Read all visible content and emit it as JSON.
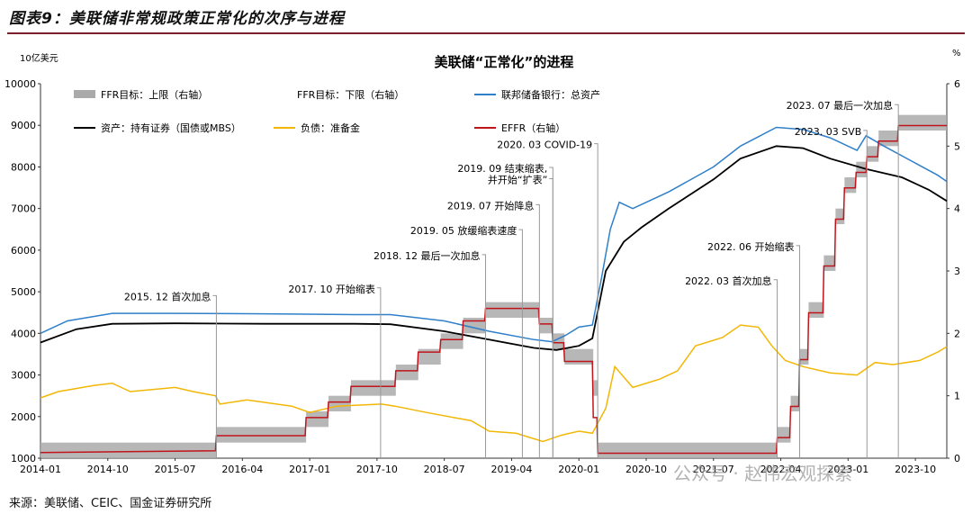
{
  "header_title": "图表9：美联储非常规政策正常化的次序与进程",
  "source": "来源：美联储、CEIC、国金证券研究所",
  "watermark": "公众号 · 赵伟宏观探索",
  "chart_data": {
    "type": "line",
    "title": "美联储“正常化”的进程",
    "left_unit": "10亿美元",
    "right_unit": "%",
    "left_axis": {
      "min": 1000,
      "max": 10000,
      "ticks": [
        "1000",
        "2000",
        "3000",
        "4000",
        "5000",
        "6000",
        "7000",
        "8000",
        "9000",
        "10000"
      ]
    },
    "right_axis": {
      "min": 0,
      "max": 6,
      "ticks": [
        "0",
        "1",
        "2",
        "3",
        "4",
        "5",
        "6"
      ]
    },
    "x_ticks": [
      "2014-01",
      "2014-10",
      "2015-07",
      "2016-04",
      "2017-01",
      "2017-10",
      "2018-07",
      "2019-04",
      "2020-01",
      "2020-10",
      "2021-07",
      "2022-04",
      "2023-01",
      "2023-10"
    ],
    "colors": {
      "upper": "#aaaaaa",
      "total": "#2f7fc9",
      "mbs": "#000000",
      "reserves": "#f2b705",
      "effr": "#c0141c"
    },
    "legend": [
      {
        "key": "upper",
        "label": "FFR目标：上限（右轴）"
      },
      {
        "key": "lower",
        "label": "FFR目标：下限（右轴）"
      },
      {
        "key": "total",
        "label": "联邦储备银行：总资产"
      },
      {
        "key": "mbs",
        "label": "资产：持有证券（国债或MBS）"
      },
      {
        "key": "reserves",
        "label": "负债：准备金"
      },
      {
        "key": "effr",
        "label": "EFFR（右轴）"
      }
    ],
    "series": [
      {
        "key": "total",
        "name": "联邦储备银行：总资产",
        "axis": "left",
        "points": [
          [
            2014.0,
            4000
          ],
          [
            2014.3,
            4300
          ],
          [
            2014.8,
            4480
          ],
          [
            2015.5,
            4480
          ],
          [
            2016.5,
            4470
          ],
          [
            2017.5,
            4450
          ],
          [
            2017.9,
            4450
          ],
          [
            2018.5,
            4300
          ],
          [
            2019.0,
            4050
          ],
          [
            2019.5,
            3850
          ],
          [
            2019.7,
            3800
          ],
          [
            2019.85,
            3950
          ],
          [
            2020.0,
            4150
          ],
          [
            2020.15,
            4200
          ],
          [
            2020.25,
            5300
          ],
          [
            2020.35,
            6500
          ],
          [
            2020.45,
            7150
          ],
          [
            2020.6,
            7000
          ],
          [
            2021.0,
            7400
          ],
          [
            2021.5,
            8000
          ],
          [
            2021.8,
            8500
          ],
          [
            2022.2,
            8950
          ],
          [
            2022.5,
            8900
          ],
          [
            2022.8,
            8700
          ],
          [
            2023.1,
            8400
          ],
          [
            2023.2,
            8750
          ],
          [
            2023.4,
            8500
          ],
          [
            2023.7,
            8150
          ],
          [
            2024.0,
            7800
          ],
          [
            2024.1,
            7650
          ]
        ]
      },
      {
        "key": "mbs",
        "name": "资产：持有证券（国债或MBS）",
        "axis": "left",
        "points": [
          [
            2014.0,
            3780
          ],
          [
            2014.4,
            4100
          ],
          [
            2014.8,
            4230
          ],
          [
            2015.5,
            4240
          ],
          [
            2016.5,
            4230
          ],
          [
            2017.5,
            4230
          ],
          [
            2017.9,
            4220
          ],
          [
            2018.5,
            4050
          ],
          [
            2019.0,
            3850
          ],
          [
            2019.5,
            3650
          ],
          [
            2019.75,
            3600
          ],
          [
            2020.0,
            3700
          ],
          [
            2020.15,
            3880
          ],
          [
            2020.3,
            5500
          ],
          [
            2020.5,
            6200
          ],
          [
            2020.7,
            6550
          ],
          [
            2021.0,
            7000
          ],
          [
            2021.5,
            7700
          ],
          [
            2021.8,
            8200
          ],
          [
            2022.2,
            8500
          ],
          [
            2022.5,
            8450
          ],
          [
            2022.8,
            8200
          ],
          [
            2023.2,
            7950
          ],
          [
            2023.6,
            7750
          ],
          [
            2023.9,
            7450
          ],
          [
            2024.1,
            7180
          ]
        ]
      },
      {
        "key": "reserves",
        "name": "负债：准备金",
        "axis": "left",
        "points": [
          [
            2014.0,
            2450
          ],
          [
            2014.2,
            2600
          ],
          [
            2014.6,
            2750
          ],
          [
            2014.8,
            2800
          ],
          [
            2015.0,
            2600
          ],
          [
            2015.5,
            2700
          ],
          [
            2015.7,
            2600
          ],
          [
            2015.95,
            2500
          ],
          [
            2016.0,
            2300
          ],
          [
            2016.3,
            2400
          ],
          [
            2016.8,
            2250
          ],
          [
            2017.0,
            2100
          ],
          [
            2017.3,
            2250
          ],
          [
            2017.8,
            2300
          ],
          [
            2017.95,
            2250
          ],
          [
            2018.3,
            2100
          ],
          [
            2018.8,
            1900
          ],
          [
            2019.0,
            1650
          ],
          [
            2019.3,
            1600
          ],
          [
            2019.6,
            1400
          ],
          [
            2019.8,
            1550
          ],
          [
            2020.0,
            1650
          ],
          [
            2020.15,
            1600
          ],
          [
            2020.3,
            2200
          ],
          [
            2020.4,
            3200
          ],
          [
            2020.6,
            2700
          ],
          [
            2020.9,
            2900
          ],
          [
            2021.1,
            3100
          ],
          [
            2021.3,
            3700
          ],
          [
            2021.6,
            3900
          ],
          [
            2021.8,
            4200
          ],
          [
            2022.0,
            4150
          ],
          [
            2022.15,
            3700
          ],
          [
            2022.3,
            3350
          ],
          [
            2022.5,
            3200
          ],
          [
            2022.8,
            3050
          ],
          [
            2023.1,
            3000
          ],
          [
            2023.3,
            3300
          ],
          [
            2023.5,
            3250
          ],
          [
            2023.8,
            3350
          ],
          [
            2024.0,
            3550
          ],
          [
            2024.1,
            3680
          ]
        ]
      },
      {
        "key": "effr",
        "name": "EFFR（右轴）",
        "axis": "right",
        "points": [
          [
            2014.0,
            0.09
          ],
          [
            2015.95,
            0.12
          ],
          [
            2015.96,
            0.36
          ],
          [
            2016.95,
            0.36
          ],
          [
            2016.96,
            0.65
          ],
          [
            2017.2,
            0.65
          ],
          [
            2017.21,
            0.9
          ],
          [
            2017.45,
            0.9
          ],
          [
            2017.46,
            1.15
          ],
          [
            2017.95,
            1.15
          ],
          [
            2017.96,
            1.4
          ],
          [
            2018.2,
            1.4
          ],
          [
            2018.21,
            1.7
          ],
          [
            2018.45,
            1.7
          ],
          [
            2018.46,
            1.9
          ],
          [
            2018.7,
            1.9
          ],
          [
            2018.71,
            2.2
          ],
          [
            2018.95,
            2.2
          ],
          [
            2018.96,
            2.4
          ],
          [
            2019.55,
            2.4
          ],
          [
            2019.56,
            2.15
          ],
          [
            2019.7,
            2.15
          ],
          [
            2019.71,
            1.85
          ],
          [
            2019.83,
            1.85
          ],
          [
            2019.84,
            1.55
          ],
          [
            2020.15,
            1.55
          ],
          [
            2020.16,
            0.65
          ],
          [
            2020.2,
            0.65
          ],
          [
            2020.21,
            0.08
          ],
          [
            2022.2,
            0.08
          ],
          [
            2022.21,
            0.33
          ],
          [
            2022.35,
            0.33
          ],
          [
            2022.36,
            0.83
          ],
          [
            2022.45,
            0.83
          ],
          [
            2022.46,
            1.58
          ],
          [
            2022.55,
            1.58
          ],
          [
            2022.56,
            2.33
          ],
          [
            2022.72,
            2.33
          ],
          [
            2022.73,
            3.08
          ],
          [
            2022.85,
            3.08
          ],
          [
            2022.86,
            3.83
          ],
          [
            2022.95,
            3.83
          ],
          [
            2022.96,
            4.33
          ],
          [
            2023.08,
            4.33
          ],
          [
            2023.09,
            4.58
          ],
          [
            2023.2,
            4.58
          ],
          [
            2023.21,
            4.83
          ],
          [
            2023.33,
            4.83
          ],
          [
            2023.34,
            5.08
          ],
          [
            2023.55,
            5.08
          ],
          [
            2023.56,
            5.33
          ],
          [
            2024.1,
            5.33
          ]
        ]
      }
    ],
    "upper_limit": [
      [
        2014.0,
        2015.96,
        0.25
      ],
      [
        2015.96,
        2016.96,
        0.5
      ],
      [
        2016.96,
        2017.21,
        0.75
      ],
      [
        2017.21,
        2017.46,
        1.0
      ],
      [
        2017.46,
        2017.96,
        1.25
      ],
      [
        2017.96,
        2018.21,
        1.5
      ],
      [
        2018.21,
        2018.46,
        1.75
      ],
      [
        2018.46,
        2018.71,
        2.0
      ],
      [
        2018.71,
        2018.96,
        2.25
      ],
      [
        2018.96,
        2019.56,
        2.5
      ],
      [
        2019.56,
        2019.71,
        2.25
      ],
      [
        2019.71,
        2019.84,
        2.0
      ],
      [
        2019.84,
        2020.16,
        1.75
      ],
      [
        2020.16,
        2020.21,
        1.25
      ],
      [
        2020.21,
        2022.21,
        0.25
      ],
      [
        2022.21,
        2022.36,
        0.5
      ],
      [
        2022.36,
        2022.46,
        1.0
      ],
      [
        2022.46,
        2022.56,
        1.75
      ],
      [
        2022.56,
        2022.73,
        2.5
      ],
      [
        2022.73,
        2022.86,
        3.25
      ],
      [
        2022.86,
        2022.96,
        4.0
      ],
      [
        2022.96,
        2023.09,
        4.5
      ],
      [
        2023.09,
        2023.21,
        4.75
      ],
      [
        2023.21,
        2023.34,
        5.0
      ],
      [
        2023.34,
        2023.56,
        5.25
      ],
      [
        2023.56,
        2024.1,
        5.5
      ]
    ],
    "annotations": [
      {
        "label": "2015. 12 首次加息",
        "x": 2015.96,
        "y": 4800
      },
      {
        "label": "2017. 10 开始缩表",
        "x": 2017.79,
        "y": 4985
      },
      {
        "label": "2018. 12 最后一次加息",
        "x": 2018.96,
        "y": 5785
      },
      {
        "label": "2019. 05 放缓缩表速度",
        "x": 2019.37,
        "y": 6385
      },
      {
        "label": "2019. 07 开始降息",
        "x": 2019.56,
        "y": 6985
      },
      {
        "label": "2019. 09 结束缩表,",
        "x": 2019.71,
        "y": 7880
      },
      {
        "label": "并开始“扩表”",
        "x": 2019.71,
        "y": 7610
      },
      {
        "label": "2020. 03 COVID-19",
        "x": 2020.21,
        "y": 8450
      },
      {
        "label": "2022. 03 首次加息",
        "x": 2022.21,
        "y": 5180
      },
      {
        "label": "2022. 06 开始缩表",
        "x": 2022.46,
        "y": 6000
      },
      {
        "label": "2023. 03 SVB",
        "x": 2023.21,
        "y": 8770
      },
      {
        "label": "2023. 07 最后一次加息",
        "x": 2023.56,
        "y": 9390
      }
    ]
  }
}
